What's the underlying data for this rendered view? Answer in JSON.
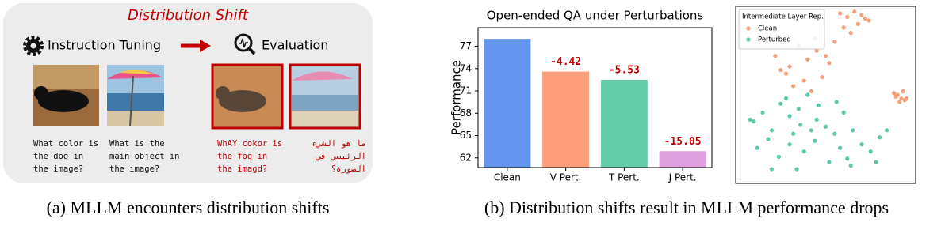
{
  "panel_a": {
    "title": "Distribution Shift",
    "steps": [
      "Instruction Tuning",
      "Evaluation"
    ],
    "questions": [
      [
        "What color is",
        "the dog in",
        "the image?"
      ],
      [
        "What is the",
        "main object in",
        "the image?"
      ],
      [
        "WhAY cokor is",
        "the fog in",
        "the imagd?"
      ],
      [
        "ما هو الشيء",
        "الرئيسي في",
        "الصورة؟"
      ]
    ],
    "caption": "(a)  MLLM encounters distribution shifts"
  },
  "chart_data": [
    {
      "type": "bar",
      "title": "Open-ended QA under Perturbations",
      "y_label": "Performance",
      "categories": [
        "Clean",
        "V Pert.",
        "T Pert.",
        "J Pert."
      ],
      "values": [
        78.0,
        73.6,
        72.5,
        62.9
      ],
      "colors": [
        "#6495ed",
        "#fc9f7a",
        "#66cdaa",
        "#dda0dd"
      ],
      "annotations": [
        "-4.42",
        "-5.53",
        "-15.05"
      ],
      "annotation_color": "#c00000",
      "ylim": [
        60.7,
        79.5
      ],
      "yticks": [
        62,
        65,
        68,
        71,
        74,
        77
      ]
    },
    {
      "type": "scatter",
      "legend_title": "Intermediate Layer Rep.",
      "legend": "upper left",
      "xlim": [
        0,
        100
      ],
      "ylim": [
        0,
        100
      ],
      "series": [
        {
          "name": "Clean",
          "color": "#f4a07c",
          "x": [
            58,
            62,
            66,
            70,
            72,
            60,
            64,
            68,
            74,
            55,
            45,
            40,
            35,
            30,
            22,
            28,
            48,
            52,
            38,
            44,
            32,
            25,
            50,
            42,
            90,
            92,
            94,
            91,
            93,
            89,
            95,
            88
          ],
          "values": [
            96,
            94,
            97,
            95,
            93,
            88,
            85,
            90,
            92,
            80,
            75,
            70,
            78,
            66,
            72,
            62,
            60,
            68,
            58,
            82,
            55,
            64,
            72,
            52,
            50,
            48,
            47,
            46,
            52,
            49,
            48,
            51
          ]
        },
        {
          "name": "Perturbed",
          "color": "#5cc9a2",
          "x": [
            10,
            15,
            20,
            25,
            30,
            35,
            40,
            45,
            50,
            55,
            60,
            65,
            70,
            75,
            80,
            12,
            18,
            24,
            32,
            38,
            44,
            52,
            58,
            64,
            8,
            28,
            36,
            46,
            56,
            30,
            34,
            42,
            62,
            78,
            84,
            20
          ],
          "values": [
            35,
            40,
            30,
            45,
            38,
            42,
            50,
            36,
            32,
            28,
            40,
            30,
            22,
            18,
            26,
            20,
            25,
            15,
            28,
            18,
            24,
            12,
            20,
            10,
            36,
            48,
            33,
            44,
            46,
            22,
            8,
            30,
            14,
            12,
            30,
            8
          ]
        }
      ]
    }
  ],
  "caption_b": "(b)  Distribution shifts result in MLLM performance drops"
}
